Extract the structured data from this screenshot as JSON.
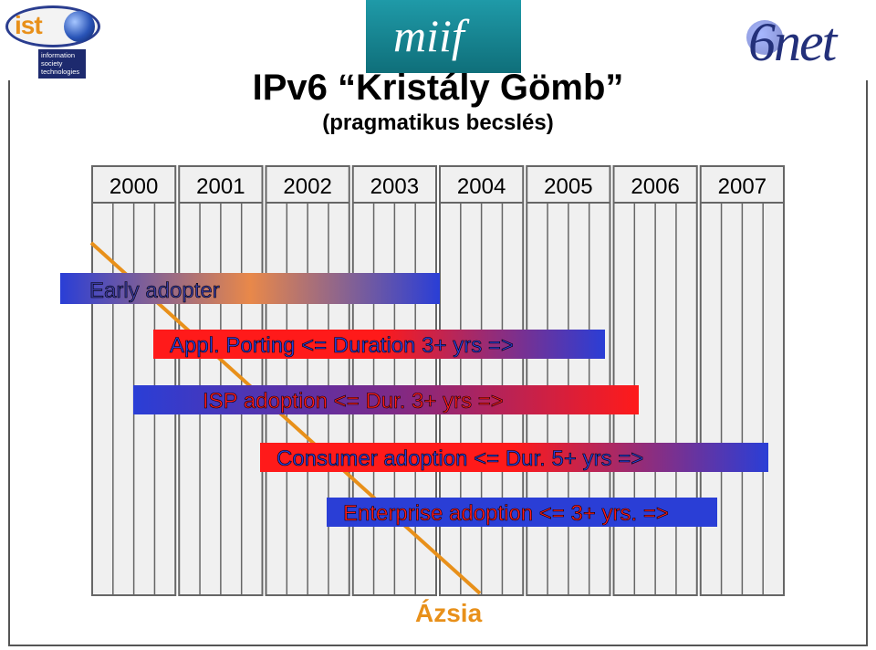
{
  "title": "IPv6 “Kristály Gömb”",
  "subtitle": "(pragmatikus becslés)",
  "years": [
    "2000",
    "2001",
    "2002",
    "2003",
    "2004",
    "2005",
    "2006",
    "2007"
  ],
  "bars": [
    {
      "label": "Early adopter",
      "text_color": "#3a3aa0",
      "start_color": "#2a3ed6",
      "mid_color": "#e8884a",
      "end_color": "#2a3ed6"
    },
    {
      "label": "Appl. Porting <= Duration 3+ yrs =>",
      "text_color": "#2a3ed6",
      "start_color": "#ff1a1a",
      "mid_color": "#ff1a1a",
      "end_color": "#2a3ed6"
    },
    {
      "label": "ISP adoption <= Dur. 3+ yrs =>",
      "text_color": "#ff1a1a",
      "start_color": "#2a3ed6",
      "mid_color": "#7a2a8a",
      "end_color": "#ff1a1a"
    },
    {
      "label": "Consumer adoption <= Dur. 5+ yrs =>",
      "text_color": "#2a3ed6",
      "start_color": "#ff1a1a",
      "mid_color": "#ff1a1a",
      "end_color": "#2a3ed6"
    },
    {
      "label": "Enterprise adoption <= 3+ yrs. =>",
      "text_color": "#ff1a1a",
      "start_color": "#2a3ed6",
      "mid_color": "#2a3ed6",
      "end_color": "#2a3ed6"
    }
  ],
  "asia_label": "Ázsia",
  "colors": {
    "asia_line": "#e8901a",
    "cell_border": "#666666",
    "cell_fill": "#f0f0f0"
  },
  "logos": {
    "ist_text": "ist",
    "ist_box": [
      "information",
      "society",
      "technologies"
    ],
    "miif_text": "miif",
    "net_text": "6net"
  }
}
